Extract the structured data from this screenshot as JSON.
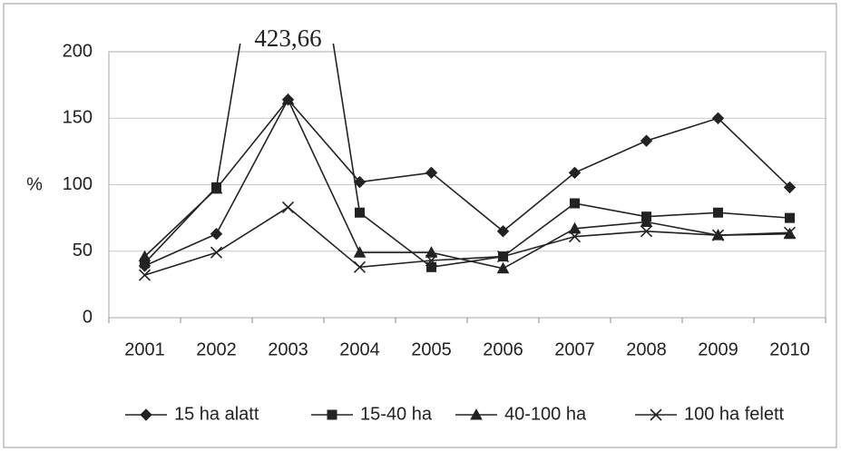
{
  "chart_data": {
    "type": "line",
    "y_label": "%",
    "categories": [
      "2001",
      "2002",
      "2003",
      "2004",
      "2005",
      "2006",
      "2007",
      "2008",
      "2009",
      "2010"
    ],
    "series": [
      {
        "name": "15 ha alatt",
        "color": "#222222",
        "marker": "diamond",
        "values": [
          39,
          63,
          164,
          102,
          109,
          65,
          109,
          133,
          150,
          98
        ]
      },
      {
        "name": "15-40 ha",
        "color": "#222222",
        "marker": "square",
        "values": [
          41,
          98,
          423.66,
          79,
          38,
          46,
          86,
          76,
          79,
          75
        ],
        "value_labels": [
          null,
          null,
          "423,66",
          null,
          null,
          null,
          null,
          null,
          null,
          null
        ]
      },
      {
        "name": "40-100 ha",
        "color": "#222222",
        "marker": "triangle",
        "values": [
          46,
          97,
          164,
          49,
          49,
          37,
          67,
          72,
          62,
          63
        ]
      },
      {
        "name": "100 ha felett",
        "color": "#222222",
        "marker": "x",
        "values": [
          32,
          49,
          83,
          38,
          43,
          46,
          61,
          65,
          62,
          64
        ]
      }
    ],
    "ylim": [
      0,
      200
    ],
    "yticks": [
      0,
      50,
      100,
      150,
      200
    ],
    "grid": true,
    "legend": "bottom"
  }
}
